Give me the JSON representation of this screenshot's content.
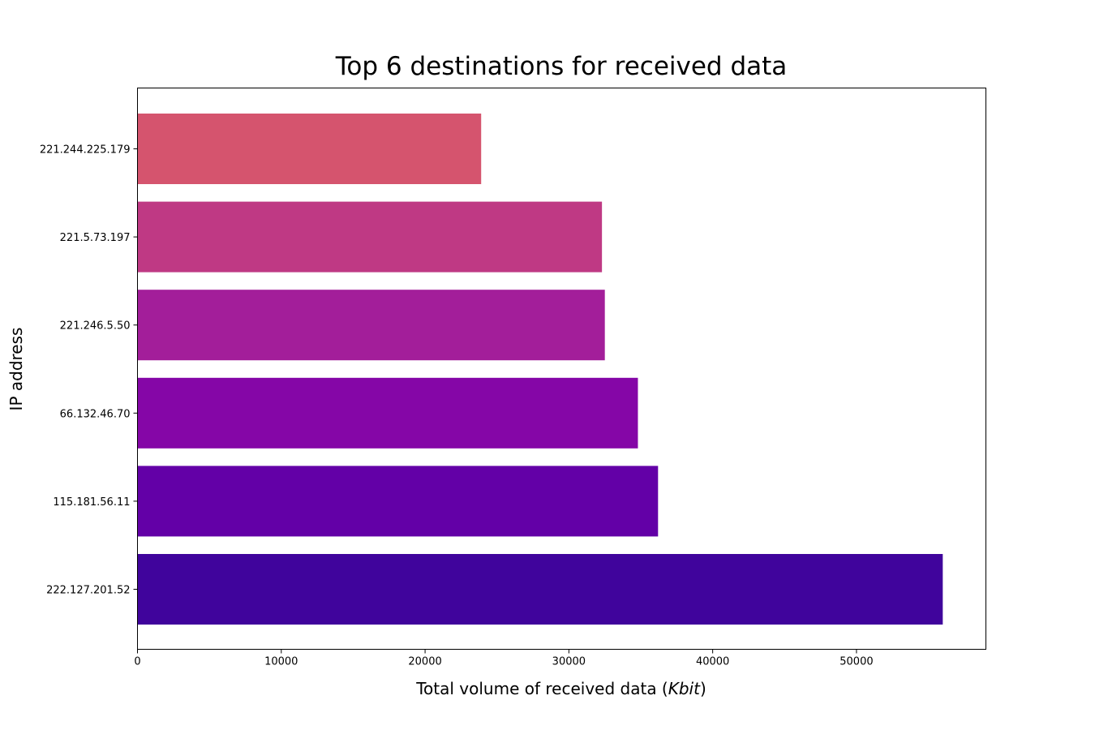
{
  "chart_data": {
    "type": "bar",
    "orientation": "horizontal",
    "title": "Top 6 destinations for received data",
    "xlabel_prefix": "Total volume of received data (",
    "xlabel_unit": "Kbit",
    "xlabel_suffix": ")",
    "ylabel": "IP address",
    "xlim": [
      0,
      59000
    ],
    "xticks": [
      0,
      10000,
      20000,
      30000,
      40000,
      50000
    ],
    "categories": [
      "222.127.201.52",
      "115.181.56.11",
      "66.132.46.70",
      "221.246.5.50",
      "221.5.73.197",
      "221.244.225.179"
    ],
    "values": [
      56000,
      36200,
      34800,
      32500,
      32300,
      23900
    ],
    "colors": [
      "#40049c",
      "#6300a7",
      "#8506a7",
      "#a31e9a",
      "#bf3984",
      "#d5546e"
    ],
    "grid": false,
    "legend": "none"
  }
}
